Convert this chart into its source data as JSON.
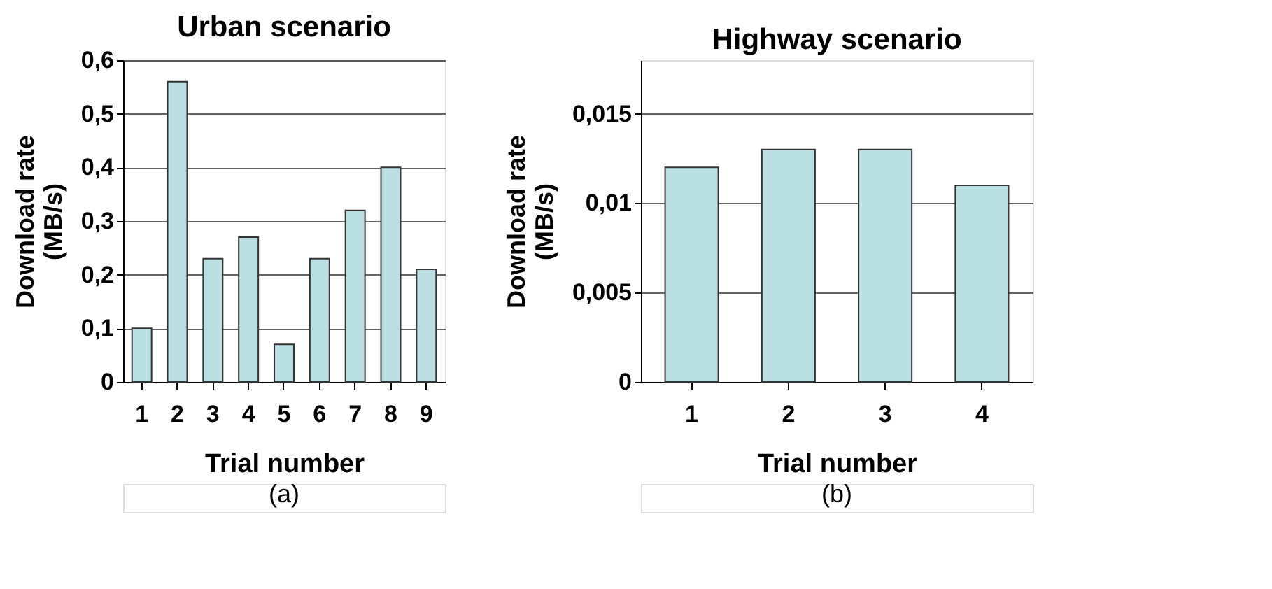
{
  "chart_data": [
    {
      "type": "bar",
      "title": "Urban scenario",
      "xlabel": "Trial number",
      "ylabel": "Download rate (MB/s)",
      "categories": [
        "1",
        "2",
        "3",
        "4",
        "5",
        "6",
        "7",
        "8",
        "9"
      ],
      "values": [
        0.1,
        0.56,
        0.23,
        0.27,
        0.07,
        0.23,
        0.32,
        0.4,
        0.21
      ],
      "color": "#bbe0e3",
      "ylim": [
        0,
        0.6
      ],
      "yticks": [
        0,
        {
          "value": 0.1,
          "label": "0,1"
        },
        {
          "value": 0.2,
          "label": "0,2"
        },
        {
          "value": 0.3,
          "label": "0,3"
        },
        {
          "value": 0.4,
          "label": "0,4"
        },
        {
          "value": 0.5,
          "label": "0,5"
        },
        {
          "value": 0.6,
          "label": "0,6"
        }
      ],
      "grid": "y",
      "annotations": [
        "(a)"
      ]
    },
    {
      "type": "bar",
      "title": "Highway scenario",
      "xlabel": "Trial number",
      "ylabel": "Download rate (MB/s)",
      "categories": [
        "1",
        "2",
        "3",
        "4"
      ],
      "values": [
        0.012,
        0.013,
        0.013,
        0.011
      ],
      "color": "#bbe0e3",
      "ylim": [
        0,
        0.018
      ],
      "yticks": [
        0,
        {
          "value": 0.005,
          "label": "0,005"
        },
        {
          "value": 0.01,
          "label": "0,01"
        },
        {
          "value": 0.015,
          "label": "0,015"
        }
      ],
      "grid": "y",
      "annotations": [
        "(b)"
      ]
    }
  ]
}
